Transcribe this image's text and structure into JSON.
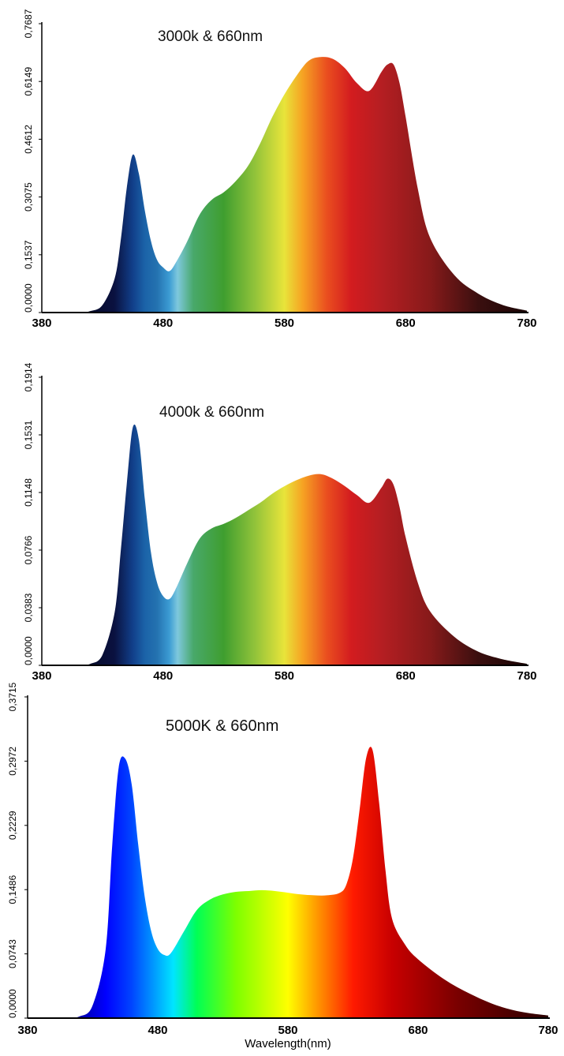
{
  "chart_data": [
    {
      "type": "area",
      "title": "3000k & 660nm",
      "xlabel": "",
      "ylabel": "",
      "xlim": [
        380,
        780
      ],
      "ylim": [
        0,
        0.7687
      ],
      "x_ticks": [
        "380",
        "480",
        "580",
        "680",
        "780"
      ],
      "y_ticks": [
        "0,0000",
        "0,1537",
        "0,3075",
        "0,4612",
        "0,6149",
        "0,7687"
      ],
      "x": [
        380,
        410,
        420,
        430,
        440,
        445,
        450,
        455,
        460,
        465,
        470,
        475,
        480,
        485,
        490,
        500,
        510,
        520,
        530,
        540,
        550,
        560,
        570,
        580,
        590,
        600,
        610,
        620,
        630,
        640,
        650,
        660,
        665,
        670,
        675,
        680,
        690,
        700,
        720,
        740,
        760,
        780
      ],
      "values": [
        0,
        0,
        0.004,
        0.02,
        0.09,
        0.19,
        0.33,
        0.42,
        0.37,
        0.27,
        0.19,
        0.14,
        0.12,
        0.11,
        0.13,
        0.19,
        0.26,
        0.3,
        0.32,
        0.35,
        0.39,
        0.45,
        0.52,
        0.58,
        0.63,
        0.67,
        0.68,
        0.675,
        0.65,
        0.61,
        0.59,
        0.64,
        0.66,
        0.66,
        0.61,
        0.52,
        0.33,
        0.2,
        0.1,
        0.05,
        0.02,
        0.005
      ]
    },
    {
      "type": "area",
      "title": "4000k & 660nm",
      "xlabel": "",
      "ylabel": "",
      "xlim": [
        380,
        780
      ],
      "ylim": [
        0,
        0.1914
      ],
      "x_ticks": [
        "380",
        "480",
        "580",
        "680",
        "780"
      ],
      "y_ticks": [
        "0,0000",
        "0,0383",
        "0,0766",
        "0,1148",
        "0,1531",
        "0,1914"
      ],
      "x": [
        380,
        410,
        420,
        430,
        440,
        445,
        450,
        455,
        460,
        465,
        470,
        475,
        480,
        485,
        490,
        500,
        510,
        520,
        530,
        540,
        550,
        560,
        570,
        580,
        590,
        600,
        610,
        620,
        630,
        640,
        650,
        660,
        665,
        670,
        675,
        680,
        690,
        700,
        720,
        740,
        760,
        780
      ],
      "values": [
        0,
        0,
        0.001,
        0.007,
        0.035,
        0.075,
        0.12,
        0.158,
        0.15,
        0.11,
        0.075,
        0.055,
        0.046,
        0.044,
        0.05,
        0.068,
        0.084,
        0.091,
        0.094,
        0.098,
        0.103,
        0.108,
        0.114,
        0.119,
        0.123,
        0.126,
        0.127,
        0.124,
        0.119,
        0.113,
        0.108,
        0.118,
        0.124,
        0.12,
        0.105,
        0.085,
        0.055,
        0.036,
        0.019,
        0.009,
        0.004,
        0.001
      ]
    },
    {
      "type": "area",
      "title": "5000K & 660nm",
      "xlabel": "Wavelength(nm)",
      "ylabel": "",
      "xlim": [
        380,
        780
      ],
      "ylim": [
        0,
        0.3715
      ],
      "x_ticks": [
        "380",
        "480",
        "580",
        "680",
        "780"
      ],
      "y_ticks": [
        "0,0000",
        "0,0743",
        "0,1486",
        "0,2229",
        "0,2972",
        "0,3715"
      ],
      "x": [
        380,
        410,
        420,
        430,
        440,
        445,
        450,
        455,
        460,
        465,
        470,
        475,
        480,
        485,
        490,
        500,
        510,
        520,
        530,
        540,
        550,
        560,
        570,
        580,
        590,
        600,
        610,
        620,
        625,
        630,
        635,
        640,
        645,
        650,
        655,
        660,
        670,
        680,
        700,
        720,
        740,
        760,
        780
      ],
      "values": [
        0,
        0,
        0.002,
        0.015,
        0.08,
        0.2,
        0.29,
        0.3,
        0.27,
        0.2,
        0.14,
        0.1,
        0.08,
        0.073,
        0.075,
        0.1,
        0.125,
        0.137,
        0.143,
        0.146,
        0.147,
        0.148,
        0.147,
        0.145,
        0.143,
        0.142,
        0.142,
        0.145,
        0.155,
        0.185,
        0.24,
        0.3,
        0.31,
        0.25,
        0.17,
        0.115,
        0.085,
        0.068,
        0.045,
        0.028,
        0.015,
        0.007,
        0.003
      ]
    }
  ],
  "colors": {
    "spectrum": [
      "#000000",
      "#0a1140",
      "#113f8a",
      "#1b63a8",
      "#2472b0",
      "#3b9bd3",
      "#7ec8dd",
      "#48a86a",
      "#3f9e2f",
      "#8fc23a",
      "#e8e43a",
      "#f6a323",
      "#ea4e1f",
      "#d31c1f",
      "#b51e22",
      "#871a1a",
      "#3a0f0f",
      "#1a0505"
    ],
    "spectrum_bright": [
      "#000000",
      "#0000ff",
      "#0045ff",
      "#00e5ff",
      "#00ff55",
      "#7dff00",
      "#ffff00",
      "#ff8c00",
      "#ff1a00",
      "#c80000",
      "#7a0000",
      "#2a0000"
    ]
  }
}
